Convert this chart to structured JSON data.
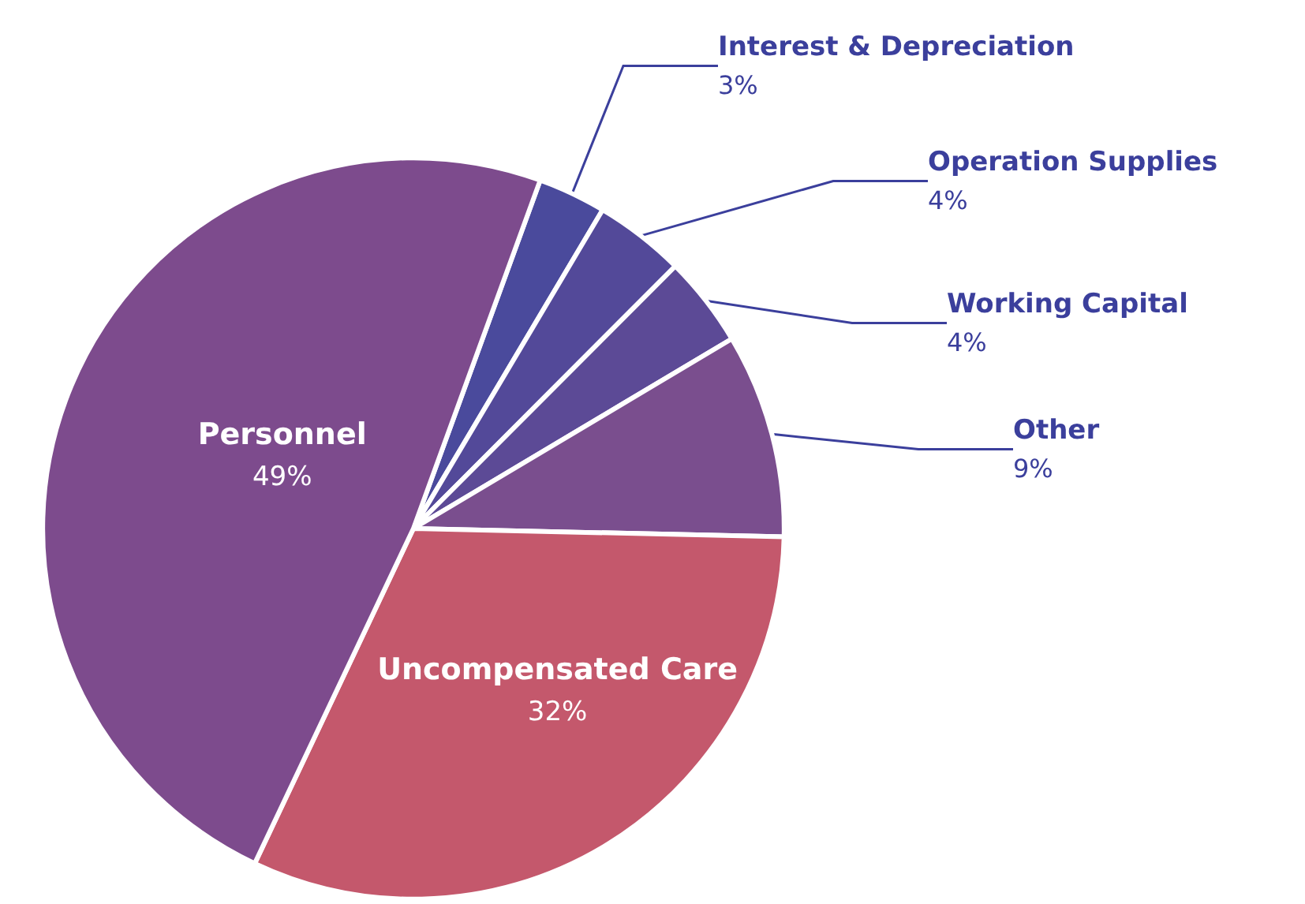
{
  "chart_data": {
    "type": "pie",
    "categories": [
      "Interest & Depreciation",
      "Operation Supplies",
      "Working Capital",
      "Other",
      "Uncompensated Care",
      "Personnel"
    ],
    "values": [
      3,
      4,
      4,
      9,
      32,
      49
    ],
    "value_labels": [
      "3%",
      "4%",
      "4%",
      "9%",
      "32%",
      "49%"
    ],
    "colors": [
      "#4a4a9c",
      "#534999",
      "#5c4a96",
      "#7a4e8e",
      "#c4586c",
      "#7d4b8d"
    ],
    "legend": false
  }
}
